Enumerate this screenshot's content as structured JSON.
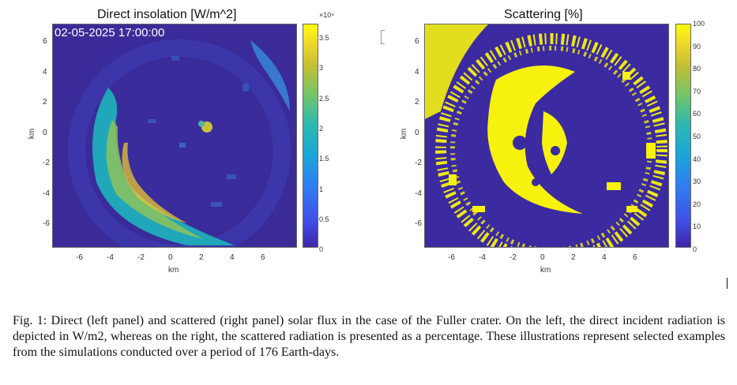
{
  "left_panel": {
    "title": "Direct insolation [W/m^2]",
    "timestamp": "02-05-2025 17:00:00",
    "xlabel": "km",
    "ylabel": "km",
    "x_ticks": [
      "-6",
      "-4",
      "-2",
      "0",
      "2",
      "4",
      "6"
    ],
    "y_ticks": [
      "6",
      "4",
      "2",
      "0",
      "-2",
      "-4",
      "-6"
    ],
    "colorbar": {
      "exponent": "×10⁴",
      "ticks": [
        "3.5",
        "3",
        "2.5",
        "2",
        "1.5",
        "1",
        "0.5",
        "0"
      ],
      "colormap": "parula"
    }
  },
  "right_panel": {
    "title": "Scattering [%]",
    "xlabel": "km",
    "ylabel": "km",
    "x_ticks": [
      "-6",
      "-4",
      "-2",
      "0",
      "2",
      "4",
      "6"
    ],
    "y_ticks": [
      "6",
      "4",
      "2",
      "0",
      "-2",
      "-4",
      "-6"
    ],
    "colorbar": {
      "ticks": [
        "100",
        "90",
        "80",
        "70",
        "60",
        "50",
        "40",
        "30",
        "20",
        "10",
        "0"
      ],
      "colormap": "parula"
    }
  },
  "caption": "Fig. 1: Direct (left panel) and scattered (right panel) solar flux in the case of the Fuller crater. On the left, the direct incident radiation is depicted in W/m2, whereas on the right, the scattered radiation is presented as a percentage. These illustrations represent selected examples from the simulations conducted over a period of 176 Earth-days.",
  "colors": {
    "parula_low": "#3e26a8",
    "parula_mid": "#2db8b0",
    "parula_high": "#f9fb0e"
  }
}
